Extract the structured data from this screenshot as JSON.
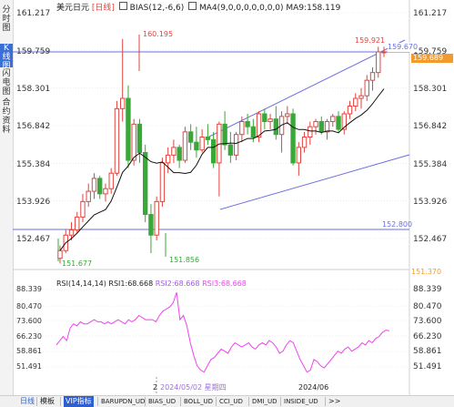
{
  "sidebar": {
    "tabs": [
      "分时图",
      "K线图",
      "闪电图",
      "合约资料"
    ],
    "active": 1
  },
  "main": {
    "title": "美元日元",
    "period_badge": "[日线]",
    "bias_label": "BIAS(12,-6,6)",
    "ma_label": "MA4(9,0,0,0,0,0,0,0)",
    "ma_value_label": "MA9:158.119",
    "price_axis": [
      "161.217",
      "159.759",
      "158.301",
      "156.842",
      "155.384",
      "153.926",
      "152.467"
    ],
    "annotations": {
      "high": "160.195",
      "recent_high": "159.921",
      "low": "151.856",
      "start_low": "151.677",
      "channel_top": "159.670",
      "last_price": "159.689",
      "support_line": "152.800",
      "bottom_value": "151.370"
    }
  },
  "indicator": {
    "rsi_label": "RSI(14,14,14)",
    "rsi1_label": "RSI1:68.668",
    "rsi2_label": "RSI2:68.668",
    "rsi3_label": "RSI3:68.668",
    "axis": [
      "88.339",
      "80.470",
      "73.600",
      "66.230",
      "58.861",
      "51.491"
    ],
    "date_overlay": "2024/05/02 星期四",
    "date_prefix": "2",
    "date_right": "2024/06"
  },
  "bottom_bar": {
    "period": "日线",
    "items": [
      "模板",
      "VIP指标",
      "BARUPDN_UD",
      "BIAS_UD",
      "BOLL_UD",
      "CCI_UD",
      "DMI_UD",
      "INSIDE_UD"
    ],
    "more": ">>"
  },
  "colors": {
    "up": "#e0453f",
    "down": "#38a838",
    "ma": "#111111",
    "channel": "#6b6fe0",
    "rsi": "#ee44ee",
    "accent": "#2d5fd0",
    "last_price_tag": "#f29a2e"
  },
  "chart_data": {
    "type": "candlestick",
    "ma_period": 9,
    "candles": [
      [
        151.7,
        152.2,
        151.5,
        152.0
      ],
      [
        152.0,
        152.8,
        151.9,
        152.6
      ],
      [
        152.6,
        153.1,
        152.4,
        152.8
      ],
      [
        152.8,
        153.5,
        152.7,
        153.3
      ],
      [
        153.3,
        154.2,
        153.1,
        153.9
      ],
      [
        153.9,
        154.6,
        153.7,
        154.3
      ],
      [
        154.3,
        155.0,
        154.0,
        154.8
      ],
      [
        154.8,
        154.9,
        154.0,
        154.2
      ],
      [
        154.2,
        154.6,
        153.9,
        154.4
      ],
      [
        154.4,
        155.2,
        154.2,
        155.0
      ],
      [
        155.0,
        157.8,
        154.9,
        157.5
      ],
      [
        157.5,
        160.2,
        157.0,
        157.9
      ],
      [
        157.9,
        158.4,
        155.2,
        155.5
      ],
      [
        155.5,
        157.1,
        155.3,
        156.9
      ],
      [
        156.9,
        157.1,
        155.4,
        155.8
      ],
      [
        155.8,
        156.1,
        153.1,
        153.4
      ],
      [
        153.4,
        153.8,
        151.9,
        152.6
      ],
      [
        152.6,
        154.1,
        152.4,
        153.9
      ],
      [
        153.9,
        155.6,
        153.7,
        155.4
      ],
      [
        155.4,
        156.0,
        155.0,
        155.7
      ],
      [
        155.7,
        156.3,
        155.4,
        156.0
      ],
      [
        156.0,
        156.1,
        155.2,
        155.5
      ],
      [
        155.5,
        156.8,
        155.4,
        156.6
      ],
      [
        156.6,
        156.9,
        155.9,
        156.2
      ],
      [
        156.2,
        156.8,
        155.6,
        155.9
      ],
      [
        155.9,
        156.7,
        155.8,
        156.4
      ],
      [
        156.4,
        156.9,
        156.1,
        156.3
      ],
      [
        156.3,
        156.6,
        155.2,
        155.4
      ],
      [
        155.4,
        157.0,
        154.1,
        156.9
      ],
      [
        156.9,
        157.4,
        155.9,
        156.1
      ],
      [
        156.1,
        156.6,
        155.4,
        155.7
      ],
      [
        155.7,
        156.6,
        155.5,
        156.5
      ],
      [
        156.5,
        157.2,
        156.2,
        157.0
      ],
      [
        157.0,
        157.3,
        156.5,
        156.8
      ],
      [
        156.8,
        157.1,
        156.2,
        156.4
      ],
      [
        156.4,
        157.4,
        156.2,
        157.3
      ],
      [
        157.3,
        157.5,
        156.7,
        157.0
      ],
      [
        157.0,
        157.3,
        156.7,
        157.1
      ],
      [
        157.1,
        157.6,
        156.3,
        156.5
      ],
      [
        156.5,
        157.4,
        155.8,
        157.2
      ],
      [
        157.2,
        157.6,
        156.9,
        157.3
      ],
      [
        157.3,
        157.5,
        155.3,
        155.4
      ],
      [
        155.4,
        156.2,
        154.9,
        156.0
      ],
      [
        156.0,
        156.6,
        155.8,
        156.4
      ],
      [
        156.4,
        157.0,
        156.1,
        156.8
      ],
      [
        156.8,
        157.1,
        156.5,
        157.0
      ],
      [
        157.0,
        157.2,
        156.5,
        156.6
      ],
      [
        156.6,
        157.1,
        156.3,
        157.0
      ],
      [
        157.0,
        157.3,
        156.8,
        157.2
      ],
      [
        157.2,
        157.4,
        156.6,
        156.7
      ],
      [
        156.7,
        157.4,
        156.5,
        157.3
      ],
      [
        157.3,
        157.8,
        157.1,
        157.6
      ],
      [
        157.6,
        158.1,
        157.4,
        157.9
      ],
      [
        157.9,
        158.3,
        157.5,
        158.0
      ],
      [
        158.0,
        158.8,
        157.8,
        158.6
      ],
      [
        158.6,
        159.1,
        158.2,
        158.9
      ],
      [
        158.9,
        159.9,
        158.7,
        159.7
      ],
      [
        159.7,
        159.9,
        159.5,
        159.7
      ]
    ],
    "rsi": [
      62,
      64,
      66,
      64,
      70,
      72,
      71,
      73,
      72,
      72,
      73,
      74,
      73,
      73,
      72,
      73,
      72,
      73,
      74,
      73,
      72,
      74,
      73,
      74,
      76,
      75,
      74,
      74,
      74,
      73,
      76,
      78,
      79,
      80,
      82,
      87,
      74,
      76,
      71,
      63,
      57,
      52,
      50,
      49,
      52,
      55,
      56,
      58,
      60,
      59,
      58,
      61,
      63,
      62,
      61,
      62,
      63,
      61,
      60,
      62,
      63,
      62,
      64,
      63,
      61,
      58,
      59,
      62,
      64,
      63,
      59,
      55,
      52,
      49,
      50,
      55,
      54,
      52,
      51,
      53,
      55,
      57,
      59,
      58,
      60,
      61,
      59,
      60,
      61,
      63,
      62,
      64,
      63,
      65,
      66,
      68,
      69,
      68.7
    ]
  }
}
